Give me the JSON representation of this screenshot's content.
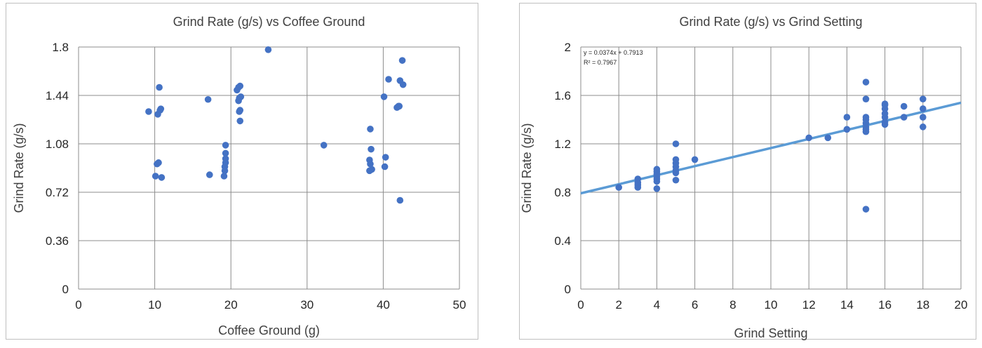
{
  "chart_data": [
    {
      "type": "scatter",
      "title": "Grind Rate (g/s) vs Coffee Ground",
      "xlabel": "Coffee Ground (g)",
      "ylabel": "Grind Rate (g/s)",
      "xlim": [
        0,
        50
      ],
      "ylim": [
        0,
        1.8
      ],
      "xticks": [
        "0",
        "10",
        "20",
        "30",
        "40",
        "50"
      ],
      "yticks": [
        "0",
        "0.36",
        "0.72",
        "1.08",
        "1.44",
        "1.8"
      ],
      "grid": true,
      "marker_color": "#4472c4",
      "series": [
        {
          "points": [
            [
              9.2,
              1.32
            ],
            [
              10.1,
              0.84
            ],
            [
              10.3,
              0.93
            ],
            [
              10.4,
              1.3
            ],
            [
              10.5,
              0.94
            ],
            [
              10.6,
              1.5
            ],
            [
              10.7,
              1.33
            ],
            [
              10.8,
              1.34
            ],
            [
              10.9,
              0.83
            ],
            [
              17.0,
              1.41
            ],
            [
              17.2,
              0.85
            ],
            [
              19.1,
              0.84
            ],
            [
              19.2,
              0.88
            ],
            [
              19.2,
              0.91
            ],
            [
              19.3,
              0.94
            ],
            [
              19.3,
              0.97
            ],
            [
              19.3,
              1.01
            ],
            [
              19.3,
              1.07
            ],
            [
              20.8,
              1.48
            ],
            [
              21.0,
              1.4
            ],
            [
              21.0,
              1.5
            ],
            [
              21.1,
              1.42
            ],
            [
              21.1,
              1.32
            ],
            [
              21.2,
              1.51
            ],
            [
              21.2,
              1.33
            ],
            [
              21.2,
              1.25
            ],
            [
              21.3,
              1.43
            ],
            [
              24.9,
              1.78
            ],
            [
              32.2,
              1.07
            ],
            [
              38.2,
              0.88
            ],
            [
              38.2,
              0.96
            ],
            [
              38.3,
              1.19
            ],
            [
              38.3,
              0.93
            ],
            [
              38.4,
              1.04
            ],
            [
              38.5,
              0.89
            ],
            [
              40.1,
              1.43
            ],
            [
              40.2,
              0.91
            ],
            [
              40.3,
              0.98
            ],
            [
              40.7,
              1.56
            ],
            [
              41.8,
              1.35
            ],
            [
              42.0,
              1.36
            ],
            [
              42.1,
              1.36
            ],
            [
              42.2,
              1.55
            ],
            [
              42.2,
              0.66
            ],
            [
              42.5,
              1.7
            ],
            [
              42.6,
              1.52
            ]
          ]
        }
      ]
    },
    {
      "type": "scatter",
      "title": "Grind Rate (g/s) vs Grind Setting",
      "xlabel": "Grind Setting",
      "ylabel": "Grind Rate (g/s)",
      "xlim": [
        0,
        20
      ],
      "ylim": [
        0,
        2
      ],
      "xticks": [
        "0",
        "2",
        "4",
        "6",
        "8",
        "10",
        "12",
        "14",
        "16",
        "18",
        "20"
      ],
      "yticks": [
        "0",
        "0.4",
        "0.8",
        "1.2",
        "1.6",
        "2"
      ],
      "grid": true,
      "marker_color": "#4472c4",
      "trendline": {
        "slope": 0.0374,
        "intercept": 0.7913,
        "color": "#5b9bd5",
        "equation": "y = 0.0374x + 0.7913",
        "r2": "R² = 0.7967"
      },
      "series": [
        {
          "points": [
            [
              2,
              0.84
            ],
            [
              3,
              0.84
            ],
            [
              3,
              0.86
            ],
            [
              3,
              0.88
            ],
            [
              3,
              0.91
            ],
            [
              4,
              0.83
            ],
            [
              4,
              0.89
            ],
            [
              4,
              0.91
            ],
            [
              4,
              0.93
            ],
            [
              4,
              0.95
            ],
            [
              4,
              0.97
            ],
            [
              4,
              0.99
            ],
            [
              5,
              0.9
            ],
            [
              5,
              0.96
            ],
            [
              5,
              0.98
            ],
            [
              5,
              1.01
            ],
            [
              5,
              1.04
            ],
            [
              5,
              1.07
            ],
            [
              5,
              1.2
            ],
            [
              6,
              1.07
            ],
            [
              12,
              1.25
            ],
            [
              13,
              1.25
            ],
            [
              14,
              1.32
            ],
            [
              14,
              1.42
            ],
            [
              15,
              0.66
            ],
            [
              15,
              1.3
            ],
            [
              15,
              1.32
            ],
            [
              15,
              1.34
            ],
            [
              15,
              1.37
            ],
            [
              15,
              1.4
            ],
            [
              15,
              1.42
            ],
            [
              15,
              1.57
            ],
            [
              15,
              1.71
            ],
            [
              16,
              1.36
            ],
            [
              16,
              1.38
            ],
            [
              16,
              1.42
            ],
            [
              16,
              1.45
            ],
            [
              16,
              1.49
            ],
            [
              16,
              1.52
            ],
            [
              16,
              1.53
            ],
            [
              17,
              1.42
            ],
            [
              17,
              1.51
            ],
            [
              18,
              1.34
            ],
            [
              18,
              1.42
            ],
            [
              18,
              1.49
            ],
            [
              18,
              1.57
            ]
          ]
        }
      ]
    }
  ]
}
